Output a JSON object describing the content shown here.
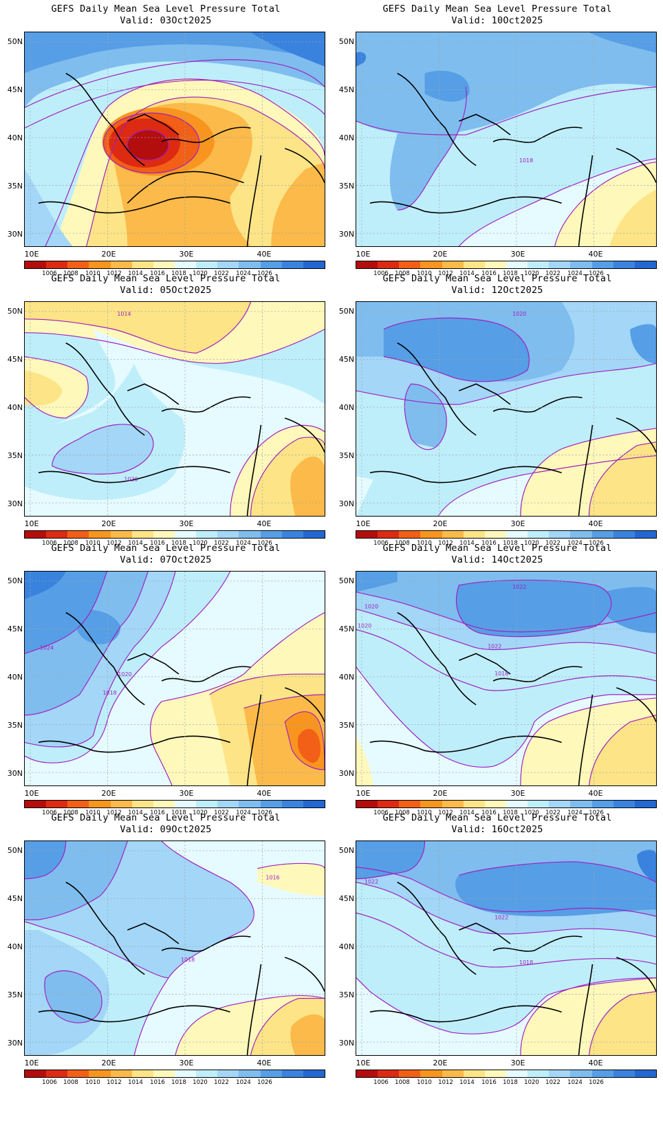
{
  "figure": {
    "colorbar": {
      "colors": [
        "#b30d0d",
        "#dd2a12",
        "#f25f17",
        "#f8951f",
        "#fbba4a",
        "#fde487",
        "#fff8bb",
        "#e6fbff",
        "#bfeefb",
        "#a3d6f7",
        "#7fbdef",
        "#569ee6",
        "#3983df",
        "#2368d2"
      ],
      "labels": [
        "1006",
        "1008",
        "1010",
        "1012",
        "1014",
        "1016",
        "1018",
        "1020",
        "1022",
        "1024",
        "1026"
      ]
    },
    "axes": {
      "x_labels": [
        "10E",
        "20E",
        "30E",
        "40E"
      ],
      "y_labels": [
        "50N",
        "45N",
        "40N",
        "35N",
        "30N"
      ]
    },
    "panels": [
      {
        "title": "GEFS Daily Mean Sea Level Pressure Total",
        "valid": "Valid: 03Oct2025",
        "labels": []
      },
      {
        "title": "GEFS Daily Mean Sea Level Pressure Total",
        "valid": "Valid: 10Oct2025",
        "labels": [
          "1018"
        ]
      },
      {
        "title": "GEFS Daily Mean Sea Level Pressure Total",
        "valid": "Valid: 05Oct2025",
        "labels": [
          "1014",
          "1020"
        ]
      },
      {
        "title": "GEFS Daily Mean Sea Level Pressure Total",
        "valid": "Valid: 12Oct2025",
        "labels": [
          "1020"
        ]
      },
      {
        "title": "GEFS Daily Mean Sea Level Pressure Total",
        "valid": "Valid: 07Oct2025",
        "labels": [
          "1024",
          "1020",
          "1018"
        ]
      },
      {
        "title": "GEFS Daily Mean Sea Level Pressure Total",
        "valid": "Valid: 14Oct2025",
        "labels": [
          "1022",
          "1020",
          "1022",
          "1020",
          "1018"
        ]
      },
      {
        "title": "GEFS Daily Mean Sea Level Pressure Total",
        "valid": "Valid: 09Oct2025",
        "labels": [
          "1016",
          "1018"
        ]
      },
      {
        "title": "GEFS Daily Mean Sea Level Pressure Total",
        "valid": "Valid: 16Oct2025",
        "labels": [
          "1022",
          "1022",
          "1018"
        ]
      }
    ]
  }
}
